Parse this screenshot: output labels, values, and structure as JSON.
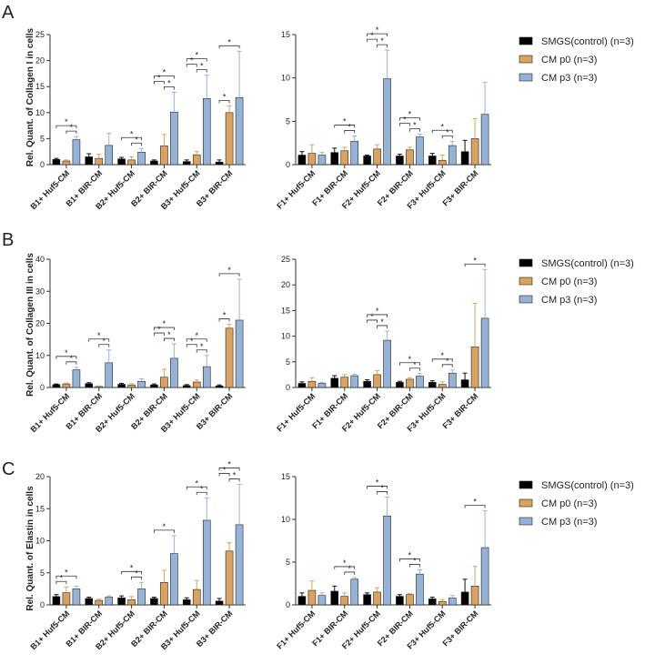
{
  "legend": {
    "items": [
      {
        "label": "SMGS(control) (n=3)",
        "color": "#000000"
      },
      {
        "label": "CM p0 (n=3)",
        "color": "#d9a35f"
      },
      {
        "label": "CM p3 (n=3)",
        "color": "#95b3d7"
      }
    ]
  },
  "panels": [
    {
      "letter": "A",
      "ylabel": "Rel. Quant. of Collagen I in cells"
    },
    {
      "letter": "B",
      "ylabel": "Rel. Quant. of Collagen III in cells"
    },
    {
      "letter": "C",
      "ylabel": "Rel. Quant. of Elastin in cells"
    }
  ],
  "chart_data": [
    {
      "type": "bar",
      "panel": "A",
      "side": "left",
      "significance_marker": "*",
      "ylabel": "Rel. Quant. of Collagen I in cells",
      "ylim": [
        0,
        25
      ],
      "yticks": [
        0,
        5,
        10,
        15,
        20,
        25
      ],
      "categories": [
        "B1+ Huf5-CM",
        "B1+ BIR-CM",
        "B2+ Huf5-CM",
        "B2+ BIR-CM",
        "B3+ Huf5-CM",
        "B3+ BIR-CM"
      ],
      "series": [
        {
          "name": "SMGS(control) (n=3)",
          "values": [
            1.0,
            1.5,
            1.1,
            0.7,
            0.6,
            0.5
          ],
          "errors": [
            0.2,
            0.6,
            0.3,
            0.2,
            0.3,
            0.4
          ]
        },
        {
          "name": "CM p0 (n=3)",
          "values": [
            0.7,
            1.2,
            0.9,
            3.6,
            1.9,
            10.0
          ],
          "errors": [
            0.2,
            0.8,
            0.6,
            2.2,
            0.6,
            1.3
          ]
        },
        {
          "name": "CM p3 (n=3)",
          "values": [
            4.8,
            3.7,
            2.4,
            10.1,
            12.7,
            12.9
          ],
          "errors": [
            0.6,
            2.3,
            0.7,
            3.8,
            4.5,
            8.9
          ]
        }
      ],
      "significance": [
        [
          0,
          0,
          2
        ],
        [
          0,
          1,
          2
        ],
        [
          2,
          0,
          2
        ],
        [
          2,
          1,
          2
        ],
        [
          3,
          0,
          2
        ],
        [
          3,
          1,
          2
        ],
        [
          3,
          0,
          1
        ],
        [
          4,
          0,
          2
        ],
        [
          4,
          1,
          2
        ],
        [
          4,
          0,
          1
        ],
        [
          5,
          0,
          1
        ],
        [
          5,
          0,
          2
        ]
      ]
    },
    {
      "type": "bar",
      "panel": "A",
      "side": "right",
      "significance_marker": "*",
      "ylabel": "",
      "ylim": [
        0,
        15
      ],
      "yticks": [
        0,
        5,
        10,
        15
      ],
      "categories": [
        "F1+ Huf5-CM",
        "F1+ BIR-CM",
        "F2+ Huf5-CM",
        "F2+ BIR-CM",
        "F3+ Huf5-CM",
        "F3+ BIR-CM"
      ],
      "series": [
        {
          "name": "SMGS(control) (n=3)",
          "values": [
            1.1,
            1.4,
            1.0,
            1.0,
            1.0,
            1.5
          ],
          "errors": [
            0.4,
            0.5,
            0.1,
            0.2,
            0.3,
            1.3
          ]
        },
        {
          "name": "CM p0 (n=3)",
          "values": [
            1.3,
            1.6,
            1.8,
            1.7,
            0.5,
            3.0
          ],
          "errors": [
            1.0,
            0.4,
            0.5,
            0.3,
            0.6,
            2.3
          ]
        },
        {
          "name": "CM p3 (n=3)",
          "values": [
            1.1,
            2.7,
            9.9,
            3.2,
            2.2,
            5.8
          ],
          "errors": [
            0.3,
            0.6,
            3.3,
            0.3,
            0.5,
            3.7
          ]
        }
      ],
      "significance": [
        [
          1,
          0,
          2
        ],
        [
          1,
          1,
          2
        ],
        [
          2,
          0,
          2
        ],
        [
          2,
          1,
          2
        ],
        [
          2,
          0,
          1
        ],
        [
          3,
          0,
          2
        ],
        [
          3,
          1,
          2
        ],
        [
          3,
          0,
          1
        ],
        [
          4,
          0,
          2
        ],
        [
          4,
          1,
          2
        ]
      ]
    },
    {
      "type": "bar",
      "panel": "B",
      "side": "left",
      "significance_marker": "*",
      "ylabel": "Rel. Quant. of Collagen III in cells",
      "ylim": [
        0,
        40
      ],
      "yticks": [
        0,
        10,
        20,
        30,
        40
      ],
      "categories": [
        "B1+ Huf5-CM",
        "B1+ BIR-CM",
        "B2+ Huf5-CM",
        "B2+ BIR-CM",
        "B3+ Huf5-CM",
        "B3+ BIR-CM"
      ],
      "series": [
        {
          "name": "SMGS(control) (n=3)",
          "values": [
            0.9,
            1.2,
            1.0,
            0.8,
            0.6,
            0.5
          ],
          "errors": [
            0.2,
            0.3,
            0.3,
            0.3,
            0.3,
            0.3
          ]
        },
        {
          "name": "CM p0 (n=3)",
          "values": [
            1.1,
            0.3,
            0.8,
            3.2,
            1.7,
            18.5
          ],
          "errors": [
            0.3,
            0.2,
            0.4,
            2.5,
            0.6,
            1.2
          ]
        },
        {
          "name": "CM p3 (n=3)",
          "values": [
            5.5,
            7.7,
            1.9,
            9.1,
            6.5,
            21.0
          ],
          "errors": [
            0.8,
            4.0,
            0.8,
            4.5,
            3.5,
            12.8
          ]
        }
      ],
      "significance": [
        [
          0,
          0,
          2
        ],
        [
          0,
          1,
          2
        ],
        [
          1,
          0,
          2
        ],
        [
          1,
          1,
          2
        ],
        [
          3,
          0,
          2
        ],
        [
          3,
          1,
          2
        ],
        [
          3,
          0,
          1
        ],
        [
          4,
          0,
          2
        ],
        [
          4,
          1,
          2
        ],
        [
          4,
          0,
          1
        ],
        [
          5,
          0,
          2
        ],
        [
          5,
          0,
          1
        ]
      ]
    },
    {
      "type": "bar",
      "panel": "B",
      "side": "right",
      "significance_marker": "*",
      "ylabel": "",
      "ylim": [
        0,
        25
      ],
      "yticks": [
        0,
        5,
        10,
        15,
        20,
        25
      ],
      "categories": [
        "F1+ Huf5-CM",
        "F1+ BIR-CM",
        "F2+ Huf5-CM",
        "F2+ BIR-CM",
        "F3+ Huf5-CM",
        "F3+ BIR-CM"
      ],
      "series": [
        {
          "name": "SMGS(control) (n=3)",
          "values": [
            0.8,
            1.8,
            1.2,
            1.0,
            1.0,
            1.5
          ],
          "errors": [
            0.3,
            0.5,
            0.3,
            0.2,
            0.3,
            1.3
          ]
        },
        {
          "name": "CM p0 (n=3)",
          "values": [
            1.2,
            2.0,
            2.5,
            1.6,
            0.6,
            7.9
          ],
          "errors": [
            0.7,
            0.5,
            0.8,
            0.3,
            0.5,
            8.5
          ]
        },
        {
          "name": "CM p3 (n=3)",
          "values": [
            0.8,
            2.3,
            9.2,
            2.2,
            2.8,
            13.5
          ],
          "errors": [
            0.2,
            0.3,
            1.8,
            0.5,
            0.6,
            9.5
          ]
        }
      ],
      "significance": [
        [
          2,
          0,
          2
        ],
        [
          2,
          1,
          2
        ],
        [
          2,
          0,
          1
        ],
        [
          3,
          0,
          2
        ],
        [
          3,
          1,
          2
        ],
        [
          4,
          0,
          2
        ],
        [
          4,
          1,
          2
        ],
        [
          5,
          0,
          2
        ]
      ]
    },
    {
      "type": "bar",
      "panel": "C",
      "side": "left",
      "significance_marker": "*",
      "ylabel": "Rel. Quant. of Elastin in cells",
      "ylim": [
        0,
        20
      ],
      "yticks": [
        0,
        5,
        10,
        15,
        20
      ],
      "categories": [
        "B1+ Huf5-CM",
        "B1+ BIR-CM",
        "B2+ Huf5-CM",
        "B2+ BIR-CM",
        "B3+ Huf5-CM",
        "B3+ BIR-CM"
      ],
      "series": [
        {
          "name": "SMGS(control) (n=3)",
          "values": [
            1.3,
            1.0,
            1.1,
            1.0,
            0.8,
            0.6
          ],
          "errors": [
            0.3,
            0.2,
            0.3,
            0.2,
            0.3,
            0.4
          ]
        },
        {
          "name": "CM p0 (n=3)",
          "values": [
            1.9,
            0.7,
            0.8,
            3.5,
            2.4,
            8.4
          ],
          "errors": [
            0.9,
            0.2,
            0.5,
            1.9,
            1.4,
            1.3
          ]
        },
        {
          "name": "CM p3 (n=3)",
          "values": [
            2.5,
            1.2,
            2.5,
            8.0,
            13.2,
            12.5
          ],
          "errors": [
            0.4,
            0.2,
            1.0,
            2.8,
            3.5,
            6.3
          ]
        }
      ],
      "significance": [
        [
          0,
          0,
          2
        ],
        [
          0,
          0,
          1
        ],
        [
          2,
          0,
          2
        ],
        [
          2,
          1,
          2
        ],
        [
          3,
          0,
          2
        ],
        [
          4,
          0,
          2
        ],
        [
          4,
          1,
          2
        ],
        [
          5,
          0,
          2
        ],
        [
          5,
          1,
          2
        ],
        [
          5,
          0,
          1
        ]
      ]
    },
    {
      "type": "bar",
      "panel": "C",
      "side": "right",
      "significance_marker": "*",
      "ylabel": "",
      "ylim": [
        0,
        15
      ],
      "yticks": [
        0,
        5,
        10,
        15
      ],
      "categories": [
        "F1+ Huf5-CM",
        "F1+ BIR-CM",
        "F2+ Huf5-CM",
        "F2+ BIR-CM",
        "F3+ Huf5-CM",
        "F3+ BIR-CM"
      ],
      "series": [
        {
          "name": "SMGS(control) (n=3)",
          "values": [
            1.0,
            1.6,
            1.2,
            1.0,
            0.7,
            1.5
          ],
          "errors": [
            0.4,
            0.6,
            0.2,
            0.2,
            0.2,
            1.5
          ]
        },
        {
          "name": "CM p0 (n=3)",
          "values": [
            1.7,
            1.0,
            1.5,
            1.2,
            0.4,
            2.2
          ],
          "errors": [
            1.1,
            0.4,
            0.5,
            0.1,
            0.2,
            2.3
          ]
        },
        {
          "name": "CM p3 (n=3)",
          "values": [
            1.1,
            3.0,
            10.4,
            3.6,
            0.8,
            6.7
          ],
          "errors": [
            0.3,
            0.2,
            2.2,
            0.5,
            0.3,
            4.3
          ]
        }
      ],
      "significance": [
        [
          1,
          0,
          2
        ],
        [
          1,
          1,
          2
        ],
        [
          2,
          0,
          2
        ],
        [
          2,
          1,
          2
        ],
        [
          3,
          0,
          2
        ],
        [
          3,
          1,
          2
        ],
        [
          5,
          0,
          2
        ]
      ]
    }
  ]
}
